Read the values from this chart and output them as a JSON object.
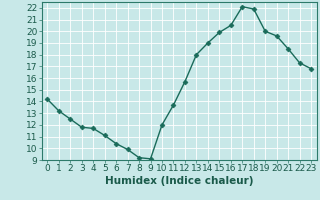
{
  "x": [
    0,
    1,
    2,
    3,
    4,
    5,
    6,
    7,
    8,
    9,
    10,
    11,
    12,
    13,
    14,
    15,
    16,
    17,
    18,
    19,
    20,
    21,
    22,
    23
  ],
  "y": [
    14.2,
    13.2,
    12.5,
    11.8,
    11.7,
    11.1,
    10.4,
    9.9,
    9.2,
    9.1,
    12.0,
    13.7,
    15.7,
    18.0,
    19.0,
    19.9,
    20.5,
    22.1,
    21.9,
    20.0,
    19.6,
    18.5,
    17.3,
    16.8
  ],
  "line_color": "#1a6b5a",
  "marker": "D",
  "marker_size": 2.5,
  "bg_color": "#c8e8e8",
  "grid_color": "#ffffff",
  "xlabel": "Humidex (Indice chaleur)",
  "ylim": [
    9,
    22.5
  ],
  "xlim": [
    -0.5,
    23.5
  ],
  "yticks": [
    9,
    10,
    11,
    12,
    13,
    14,
    15,
    16,
    17,
    18,
    19,
    20,
    21,
    22
  ],
  "xticks": [
    0,
    1,
    2,
    3,
    4,
    5,
    6,
    7,
    8,
    9,
    10,
    11,
    12,
    13,
    14,
    15,
    16,
    17,
    18,
    19,
    20,
    21,
    22,
    23
  ],
  "xlabel_fontsize": 7.5,
  "tick_fontsize": 6.5,
  "line_width": 1.0,
  "spine_color": "#2d7a6a",
  "label_color": "#1a5a4a"
}
